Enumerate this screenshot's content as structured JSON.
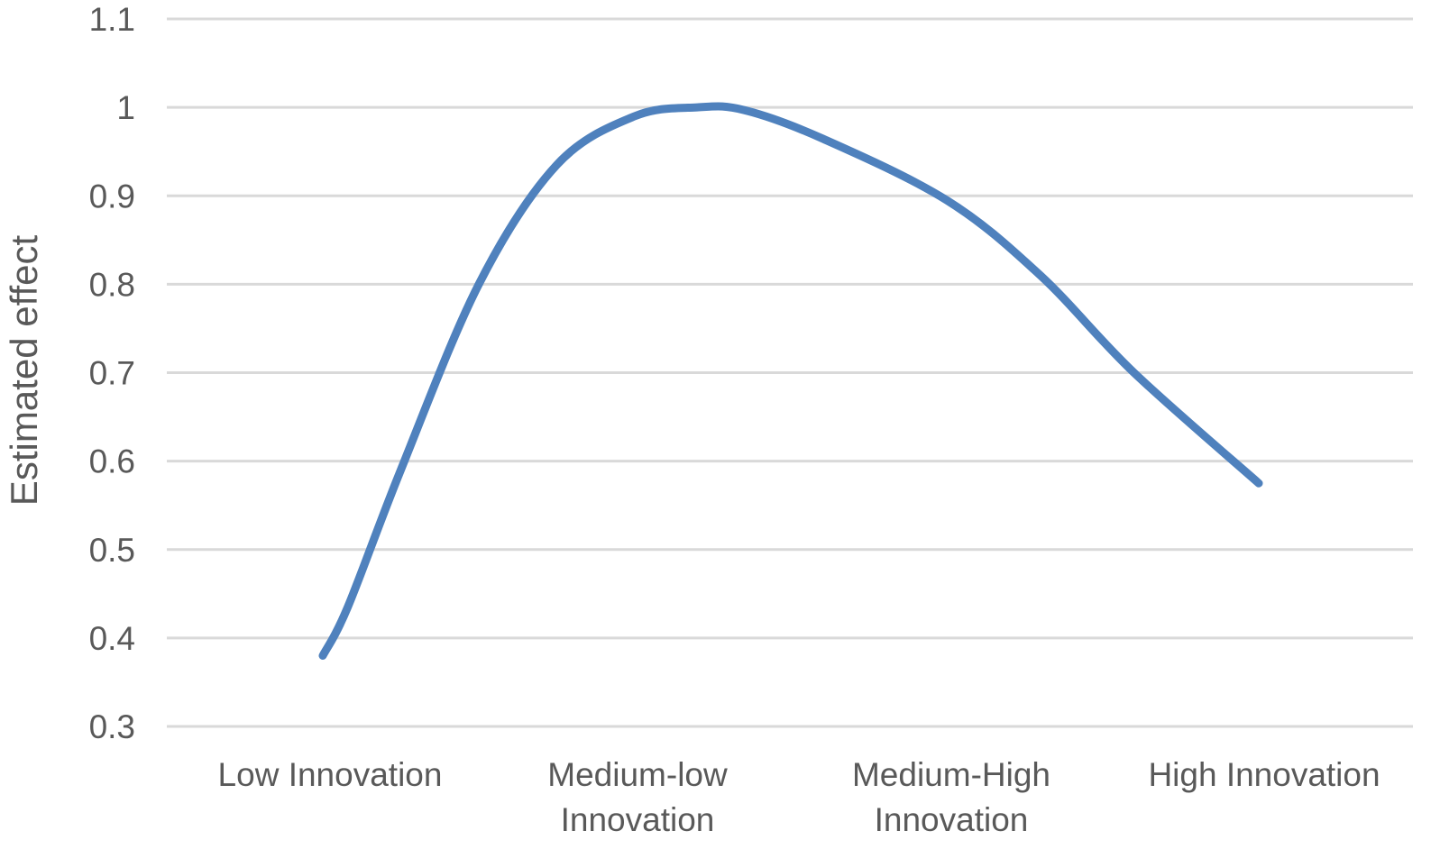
{
  "chart_data": {
    "type": "line",
    "title": "",
    "xlabel": "",
    "ylabel": "Estimated effect",
    "ylim": [
      0.3,
      1.1
    ],
    "y_ticks": [
      "0.3",
      "0.4",
      "0.5",
      "0.6",
      "0.7",
      "0.8",
      "0.9",
      "1",
      "1.1"
    ],
    "categories": [
      [
        "Low Innovation"
      ],
      [
        "Medium-low",
        "Innovation"
      ],
      [
        "Medium-High",
        "Innovation"
      ],
      [
        "High Innovation"
      ]
    ],
    "grid": true,
    "smooth": true,
    "series": [
      {
        "color": "#4f81bd",
        "points": [
          {
            "x": 0.0,
            "y": 0.38
          },
          {
            "x": 0.08,
            "y": 0.435
          },
          {
            "x": 0.25,
            "y": 0.59
          },
          {
            "x": 0.5,
            "y": 0.8
          },
          {
            "x": 0.75,
            "y": 0.935
          },
          {
            "x": 1.0,
            "y": 0.99
          },
          {
            "x": 1.2,
            "y": 1.0
          },
          {
            "x": 1.35,
            "y": 0.997
          },
          {
            "x": 1.6,
            "y": 0.965
          },
          {
            "x": 2.0,
            "y": 0.895
          },
          {
            "x": 2.3,
            "y": 0.81
          },
          {
            "x": 2.6,
            "y": 0.7
          },
          {
            "x": 3.0,
            "y": 0.575
          }
        ]
      }
    ]
  }
}
